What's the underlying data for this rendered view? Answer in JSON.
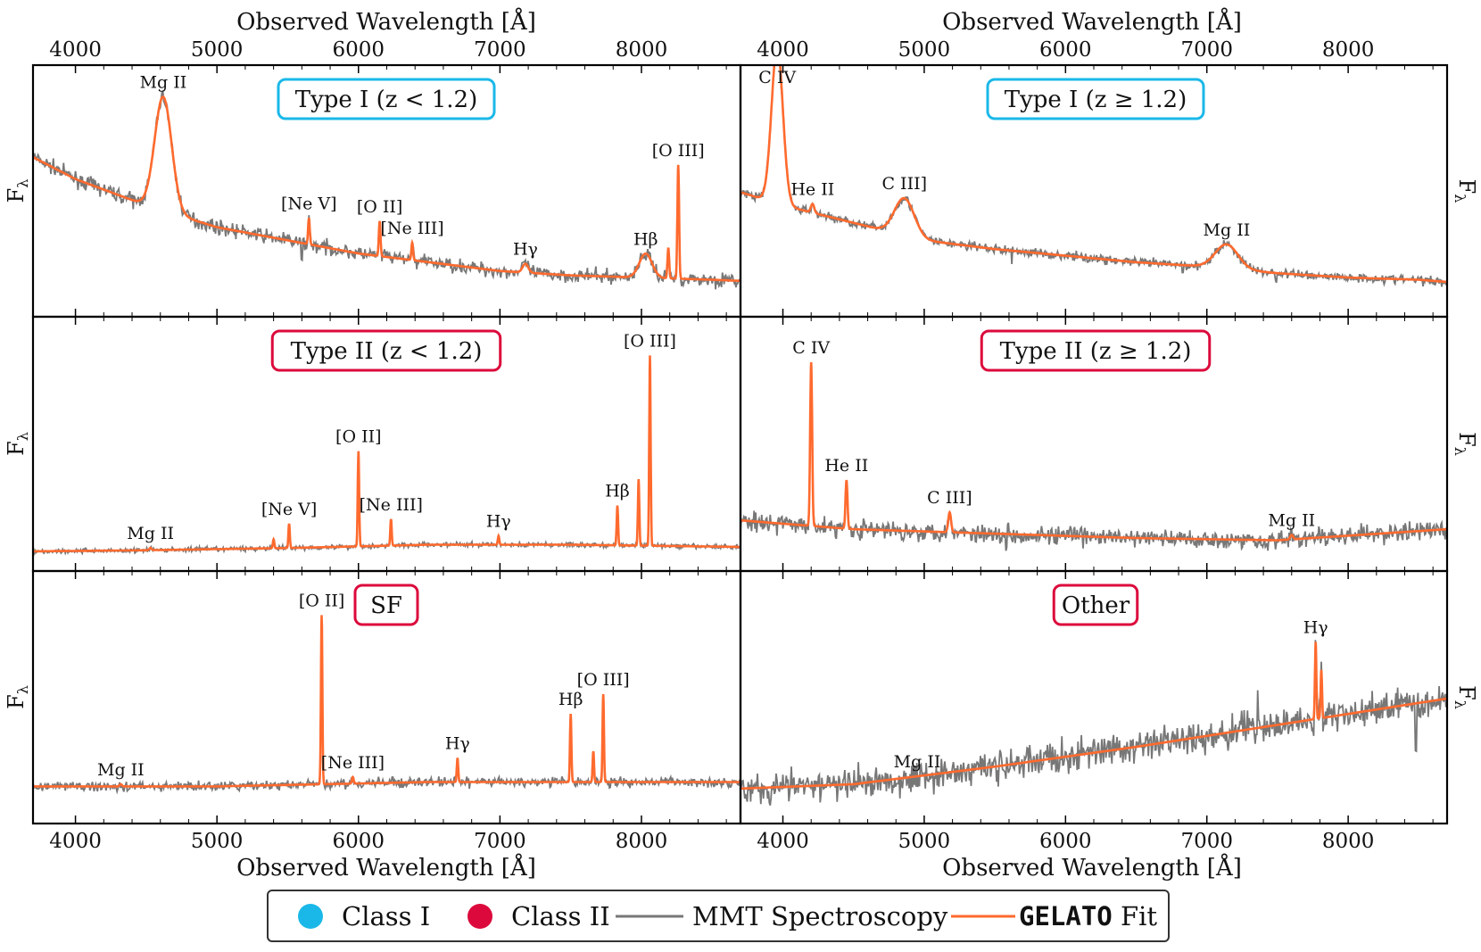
{
  "figure": {
    "top_axis_label": "Observed Wavelength [Å]",
    "bottom_axis_label": "Observed Wavelength [Å]",
    "y_label": "F",
    "y_label_sub": "λ"
  },
  "legend": {
    "class1": "Class I",
    "class2": "Class II",
    "mmt": "MMT Spectroscopy",
    "gelato_code": "GELATO",
    "gelato_rest": " Fit"
  },
  "colors": {
    "class1": "#1ab8e8",
    "class2": "#dc0a3c",
    "data": "#777777",
    "fit": "#ff6a2e"
  },
  "chart_data": [
    {
      "type": "line",
      "panel": "top-left",
      "label": "Type I (z < 1.2)",
      "class": "class1",
      "xlim": [
        3700,
        8700
      ],
      "ylim": [
        0,
        1
      ],
      "xticks": [
        4000,
        5000,
        6000,
        7000,
        8000
      ],
      "continuum": [
        [
          3700,
          0.66
        ],
        [
          4000,
          0.56
        ],
        [
          4500,
          0.44
        ],
        [
          5000,
          0.34
        ],
        [
          5500,
          0.28
        ],
        [
          6000,
          0.22
        ],
        [
          6500,
          0.18
        ],
        [
          7000,
          0.14
        ],
        [
          7500,
          0.12
        ],
        [
          8000,
          0.11
        ],
        [
          8500,
          0.1
        ],
        [
          8700,
          0.095
        ]
      ],
      "lines": [
        {
          "name": "Mg II",
          "wave": 4620,
          "amp": 0.52,
          "width": 60
        },
        {
          "name": "[Ne V]",
          "wave": 5650,
          "amp": 0.12,
          "width": 6
        },
        {
          "name": "[O II]",
          "wave": 6150,
          "amp": 0.16,
          "width": 6
        },
        {
          "name": "[Ne III]",
          "wave": 6380,
          "amp": 0.08,
          "width": 6
        },
        {
          "name": "Hγ",
          "wave": 7180,
          "amp": 0.04,
          "width": 20
        },
        {
          "name": "Hβ",
          "wave": 8030,
          "amp": 0.11,
          "width": 45
        },
        {
          "name": "",
          "wave": 8190,
          "amp": 0.14,
          "width": 6
        },
        {
          "name": "[O III]",
          "wave": 8260,
          "amp": 0.52,
          "width": 6
        }
      ],
      "noise": 0.03,
      "spikes": [
        [
          5600,
          -0.08
        ]
      ]
    },
    {
      "type": "line",
      "panel": "top-right",
      "label": "Type I (z ≥ 1.2)",
      "class": "class1",
      "xlim": [
        3700,
        8700
      ],
      "ylim": [
        0,
        1
      ],
      "xticks": [
        4000,
        5000,
        6000,
        7000,
        8000
      ],
      "continuum": [
        [
          3700,
          0.5
        ],
        [
          4000,
          0.44
        ],
        [
          4500,
          0.36
        ],
        [
          5000,
          0.28
        ],
        [
          5500,
          0.24
        ],
        [
          6000,
          0.21
        ],
        [
          6500,
          0.18
        ],
        [
          7000,
          0.16
        ],
        [
          7500,
          0.13
        ],
        [
          8000,
          0.11
        ],
        [
          8500,
          0.1
        ],
        [
          8700,
          0.09
        ]
      ],
      "lines": [
        {
          "name": "C IV",
          "wave": 3960,
          "amp": 0.72,
          "width": 40
        },
        {
          "name": "He II",
          "wave": 4210,
          "amp": 0.04,
          "width": 12
        },
        {
          "name": "C III]",
          "wave": 4860,
          "amp": 0.17,
          "width": 70
        },
        {
          "name": "Mg II",
          "wave": 7140,
          "amp": 0.11,
          "width": 80
        }
      ],
      "noise": 0.02,
      "spikes": [
        [
          5620,
          -0.05
        ],
        [
          6830,
          -0.04
        ],
        [
          7490,
          -0.04
        ]
      ]
    },
    {
      "type": "line",
      "panel": "middle-left",
      "label": "Type II (z < 1.2)",
      "class": "class2",
      "xlim": [
        3700,
        8700
      ],
      "ylim": [
        0,
        1
      ],
      "xticks": [
        4000,
        5000,
        6000,
        7000,
        8000
      ],
      "continuum": [
        [
          3700,
          0.02
        ],
        [
          4500,
          0.025
        ],
        [
          5500,
          0.035
        ],
        [
          6500,
          0.05
        ],
        [
          7500,
          0.05
        ],
        [
          8700,
          0.04
        ]
      ],
      "lines": [
        {
          "name": "Mg II",
          "wave": 4530,
          "amp": 0.01,
          "width": 8
        },
        {
          "name": "",
          "wave": 5400,
          "amp": 0.04,
          "width": 5
        },
        {
          "name": "[Ne V]",
          "wave": 5510,
          "amp": 0.11,
          "width": 5
        },
        {
          "name": "[O II]",
          "wave": 6000,
          "amp": 0.43,
          "width": 5
        },
        {
          "name": "[Ne III]",
          "wave": 6230,
          "amp": 0.12,
          "width": 5
        },
        {
          "name": "Hγ",
          "wave": 6990,
          "amp": 0.04,
          "width": 5
        },
        {
          "name": "Hβ",
          "wave": 7830,
          "amp": 0.18,
          "width": 5
        },
        {
          "name": "",
          "wave": 7980,
          "amp": 0.3,
          "width": 5
        },
        {
          "name": "[O III]",
          "wave": 8060,
          "amp": 0.86,
          "width": 5
        }
      ],
      "noise": 0.01,
      "spikes": []
    },
    {
      "type": "line",
      "panel": "middle-right",
      "label": "Type II (z ≥ 1.2)",
      "class": "class2",
      "xlim": [
        3700,
        8700
      ],
      "ylim": [
        0,
        1
      ],
      "xticks": [
        4000,
        5000,
        6000,
        7000,
        8000
      ],
      "continuum": [
        [
          3700,
          0.16
        ],
        [
          4500,
          0.12
        ],
        [
          5500,
          0.1
        ],
        [
          6500,
          0.08
        ],
        [
          7500,
          0.07
        ],
        [
          8700,
          0.12
        ]
      ],
      "lines": [
        {
          "name": "C IV",
          "wave": 4200,
          "amp": 0.74,
          "width": 7
        },
        {
          "name": "He II",
          "wave": 4450,
          "amp": 0.22,
          "width": 7
        },
        {
          "name": "C III]",
          "wave": 5180,
          "amp": 0.09,
          "width": 10
        },
        {
          "name": "Mg II",
          "wave": 7600,
          "amp": 0.02,
          "width": 10
        }
      ],
      "noise": 0.04,
      "spikes": [
        [
          5580,
          -0.06
        ]
      ]
    },
    {
      "type": "line",
      "panel": "bottom-left",
      "label": "SF",
      "class": "class2",
      "xlim": [
        3700,
        8700
      ],
      "ylim": [
        0,
        1
      ],
      "xticks": [
        4000,
        5000,
        6000,
        7000,
        8000
      ],
      "continuum": [
        [
          3700,
          0.1
        ],
        [
          5000,
          0.1
        ],
        [
          6500,
          0.12
        ],
        [
          8700,
          0.12
        ]
      ],
      "lines": [
        {
          "name": "Mg II",
          "wave": 4320,
          "amp": 0.01,
          "width": 8
        },
        {
          "name": "[O II]",
          "wave": 5740,
          "amp": 0.77,
          "width": 5
        },
        {
          "name": "[Ne III]",
          "wave": 5960,
          "amp": 0.03,
          "width": 6
        },
        {
          "name": "Hγ",
          "wave": 6700,
          "amp": 0.11,
          "width": 5
        },
        {
          "name": "Hβ",
          "wave": 7500,
          "amp": 0.31,
          "width": 5
        },
        {
          "name": "",
          "wave": 7660,
          "amp": 0.14,
          "width": 5
        },
        {
          "name": "[O III]",
          "wave": 7730,
          "amp": 0.4,
          "width": 5
        }
      ],
      "noise": 0.02,
      "spikes": []
    },
    {
      "type": "line",
      "panel": "bottom-right",
      "label": "Other",
      "class": "class2",
      "xlim": [
        3700,
        8700
      ],
      "ylim": [
        0,
        1
      ],
      "xticks": [
        4000,
        5000,
        6000,
        7000,
        8000
      ],
      "continuum": [
        [
          3700,
          0.09
        ],
        [
          4500,
          0.11
        ],
        [
          5500,
          0.19
        ],
        [
          6500,
          0.28
        ],
        [
          7500,
          0.38
        ],
        [
          8700,
          0.5
        ]
      ],
      "lines": [
        {
          "name": "Mg II",
          "wave": 4950,
          "amp": 0.0,
          "width": 10
        },
        {
          "name": "Hγ",
          "wave": 7770,
          "amp": 0.35,
          "width": 5
        },
        {
          "name": "",
          "wave": 7810,
          "amp": 0.22,
          "width": 5
        }
      ],
      "noise": 0.07,
      "spikes": [
        [
          7360,
          0.25
        ],
        [
          8480,
          -0.2
        ]
      ]
    }
  ]
}
